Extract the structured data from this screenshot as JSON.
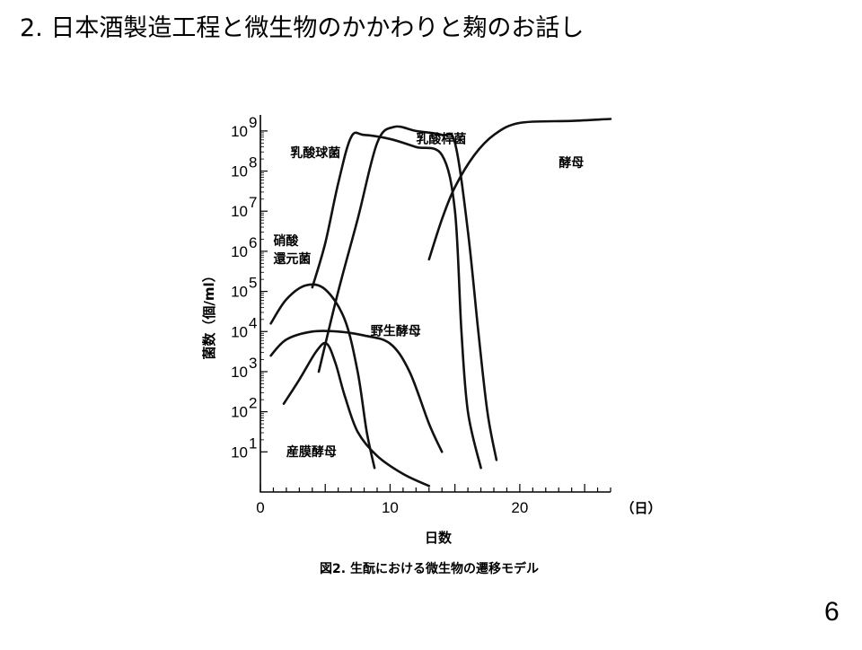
{
  "slide": {
    "title": "2. 日本酒製造工程と微生物のかかわりと麹のお話し",
    "page_number": "6"
  },
  "chart_data": {
    "type": "line",
    "caption": "図2. 生酛における微生物の遷移モデル",
    "xlabel": "日数",
    "x_unit": "（日）",
    "ylabel": "菌数（個/ml）",
    "xlim": [
      0,
      27
    ],
    "ylim": [
      0,
      9.4
    ],
    "y_scale": "log",
    "x_ticks": [
      0,
      10,
      20
    ],
    "y_ticks": [
      {
        "value": 1,
        "base": "10",
        "exp": "1"
      },
      {
        "value": 2,
        "base": "10",
        "exp": "2"
      },
      {
        "value": 3,
        "base": "10",
        "exp": "3"
      },
      {
        "value": 4,
        "base": "10",
        "exp": "4"
      },
      {
        "value": 5,
        "base": "10",
        "exp": "5"
      },
      {
        "value": 6,
        "base": "10",
        "exp": "6"
      },
      {
        "value": 7,
        "base": "10",
        "exp": "7"
      },
      {
        "value": 8,
        "base": "10",
        "exp": "8"
      },
      {
        "value": 9,
        "base": "10",
        "exp": "9"
      }
    ],
    "grid": false,
    "series": [
      {
        "name": "硝酸還元菌",
        "label_lines": [
          "硝酸",
          "還元菌"
        ],
        "points": [
          [
            0.8,
            4.2
          ],
          [
            2,
            4.8
          ],
          [
            3.5,
            5.15
          ],
          [
            5,
            5.05
          ],
          [
            6.5,
            4.3
          ],
          [
            7.5,
            3.0
          ],
          [
            8.2,
            1.5
          ],
          [
            8.8,
            0.6
          ]
        ]
      },
      {
        "name": "乳酸球菌",
        "label_lines": [
          "乳酸球菌"
        ],
        "points": [
          [
            4,
            5.1
          ],
          [
            5,
            6.2
          ],
          [
            6,
            7.7
          ],
          [
            7,
            8.85
          ],
          [
            8,
            8.9
          ],
          [
            10,
            8.8
          ],
          [
            12,
            8.6
          ],
          [
            14,
            8.4
          ],
          [
            15,
            7.0
          ],
          [
            15.5,
            4.0
          ],
          [
            16,
            2.0
          ],
          [
            17,
            0.6
          ]
        ]
      },
      {
        "name": "乳酸桿菌",
        "label_lines": [
          "乳酸桿菌"
        ],
        "points": [
          [
            4.5,
            3.0
          ],
          [
            6,
            5.0
          ],
          [
            7.5,
            6.8
          ],
          [
            9,
            8.7
          ],
          [
            10.3,
            9.1
          ],
          [
            12,
            9.0
          ],
          [
            14,
            8.9
          ],
          [
            15,
            8.7
          ],
          [
            16,
            6.5
          ],
          [
            16.8,
            4.0
          ],
          [
            17.5,
            2.0
          ],
          [
            18.2,
            0.8
          ]
        ]
      },
      {
        "name": "酵母",
        "label_lines": [
          "酵母"
        ],
        "points": [
          [
            13,
            5.8
          ],
          [
            14,
            6.8
          ],
          [
            15,
            7.6
          ],
          [
            16.5,
            8.4
          ],
          [
            18,
            8.9
          ],
          [
            20,
            9.2
          ],
          [
            24,
            9.25
          ],
          [
            27,
            9.3
          ]
        ]
      },
      {
        "name": "野生酵母",
        "label_lines": [
          "野生酵母"
        ],
        "points": [
          [
            0.8,
            3.4
          ],
          [
            2,
            3.8
          ],
          [
            4,
            4.0
          ],
          [
            6,
            4.0
          ],
          [
            8,
            3.9
          ],
          [
            10,
            3.7
          ],
          [
            11.5,
            3.0
          ],
          [
            13,
            1.7
          ],
          [
            14,
            1.0
          ]
        ]
      },
      {
        "name": "産膜酵母",
        "label_lines": [
          "産膜酵母"
        ],
        "points": [
          [
            1.8,
            2.2
          ],
          [
            3,
            2.8
          ],
          [
            4.3,
            3.5
          ],
          [
            5.1,
            3.7
          ],
          [
            5.8,
            3.2
          ],
          [
            6.5,
            2.4
          ],
          [
            7.5,
            1.5
          ],
          [
            9,
            0.9
          ],
          [
            11,
            0.45
          ],
          [
            13,
            0.15
          ]
        ]
      }
    ]
  }
}
